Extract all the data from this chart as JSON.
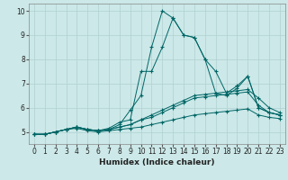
{
  "xlabel": "Humidex (Indice chaleur)",
  "xlim": [
    -0.5,
    23.5
  ],
  "ylim": [
    4.5,
    10.3
  ],
  "xticks": [
    0,
    1,
    2,
    3,
    4,
    5,
    6,
    7,
    8,
    9,
    10,
    11,
    12,
    13,
    14,
    15,
    16,
    17,
    18,
    19,
    20,
    21,
    22,
    23
  ],
  "yticks": [
    5,
    6,
    7,
    8,
    9,
    10
  ],
  "bg_color": "#cce8e8",
  "grid_color": "#b0d0d0",
  "line_color": "#006666",
  "series": [
    {
      "x": [
        0,
        1,
        2,
        3,
        4,
        5,
        6,
        7,
        8,
        9,
        10,
        11,
        12,
        13,
        14,
        15,
        16,
        17,
        18,
        19,
        20,
        21,
        22,
        23
      ],
      "y": [
        4.9,
        4.9,
        5.0,
        5.1,
        5.2,
        5.1,
        5.05,
        5.1,
        5.3,
        5.9,
        6.5,
        8.5,
        10.0,
        9.7,
        9.0,
        8.9,
        8.0,
        7.5,
        6.6,
        6.9,
        7.3,
        6.0,
        5.8,
        5.7
      ]
    },
    {
      "x": [
        0,
        1,
        2,
        3,
        4,
        5,
        6,
        7,
        8,
        9,
        10,
        11,
        12,
        13,
        14,
        15,
        16,
        17,
        18,
        19,
        20,
        21,
        22,
        23
      ],
      "y": [
        4.9,
        4.9,
        5.0,
        5.1,
        5.2,
        5.1,
        5.05,
        5.15,
        5.4,
        5.5,
        7.5,
        7.5,
        8.5,
        9.7,
        9.0,
        8.9,
        8.0,
        6.6,
        6.5,
        6.8,
        7.3,
        6.0,
        5.8,
        5.7
      ]
    },
    {
      "x": [
        0,
        1,
        2,
        3,
        4,
        5,
        6,
        7,
        8,
        9,
        10,
        11,
        12,
        13,
        14,
        15,
        16,
        17,
        18,
        19,
        20,
        21,
        22,
        23
      ],
      "y": [
        4.9,
        4.9,
        5.0,
        5.1,
        5.2,
        5.1,
        5.05,
        5.1,
        5.2,
        5.3,
        5.5,
        5.7,
        5.9,
        6.1,
        6.3,
        6.5,
        6.55,
        6.6,
        6.65,
        6.7,
        6.75,
        6.4,
        6.0,
        5.8
      ]
    },
    {
      "x": [
        0,
        1,
        2,
        3,
        4,
        5,
        6,
        7,
        8,
        9,
        10,
        11,
        12,
        13,
        14,
        15,
        16,
        17,
        18,
        19,
        20,
        21,
        22,
        23
      ],
      "y": [
        4.9,
        4.9,
        5.0,
        5.1,
        5.2,
        5.1,
        5.05,
        5.1,
        5.2,
        5.3,
        5.5,
        5.6,
        5.8,
        6.0,
        6.2,
        6.4,
        6.45,
        6.5,
        6.55,
        6.6,
        6.65,
        6.1,
        5.8,
        5.7
      ]
    },
    {
      "x": [
        0,
        1,
        2,
        3,
        4,
        5,
        6,
        7,
        8,
        9,
        10,
        11,
        12,
        13,
        14,
        15,
        16,
        17,
        18,
        19,
        20,
        21,
        22,
        23
      ],
      "y": [
        4.9,
        4.9,
        5.0,
        5.1,
        5.15,
        5.05,
        5.0,
        5.05,
        5.1,
        5.15,
        5.2,
        5.3,
        5.4,
        5.5,
        5.6,
        5.7,
        5.75,
        5.8,
        5.85,
        5.9,
        5.95,
        5.7,
        5.6,
        5.55
      ]
    }
  ]
}
